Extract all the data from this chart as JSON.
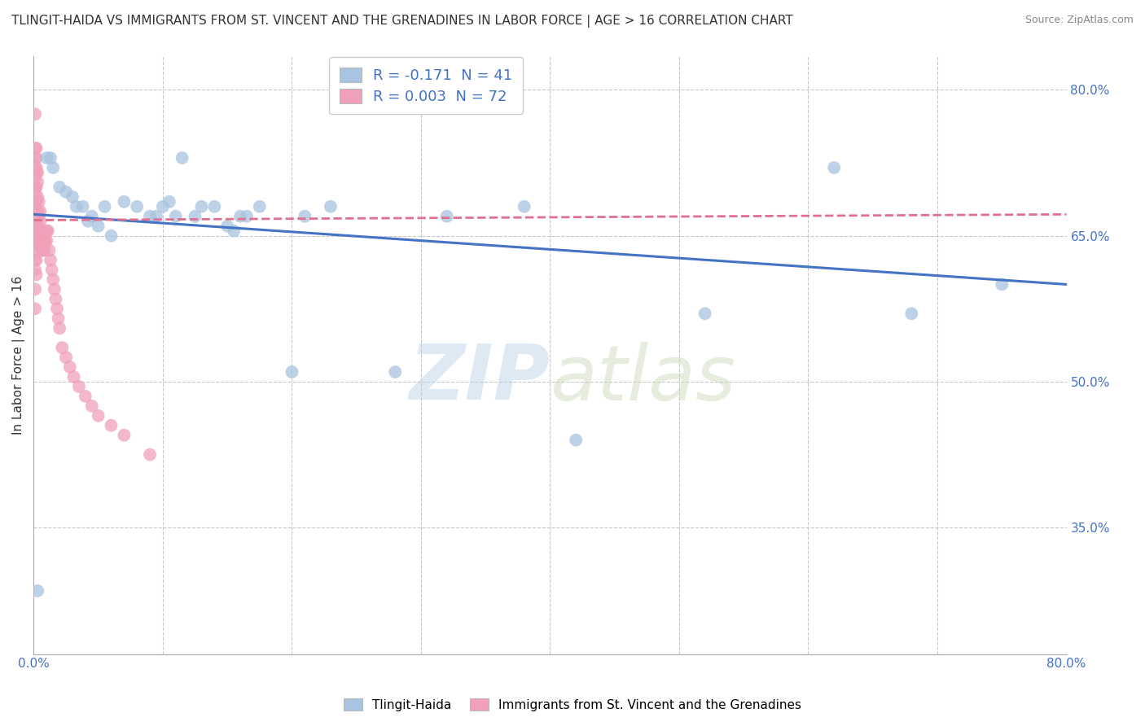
{
  "title": "TLINGIT-HAIDA VS IMMIGRANTS FROM ST. VINCENT AND THE GRENADINES IN LABOR FORCE | AGE > 16 CORRELATION CHART",
  "source": "Source: ZipAtlas.com",
  "ylabel": "In Labor Force | Age > 16",
  "xlim": [
    0.0,
    0.8
  ],
  "ylim": [
    0.22,
    0.835
  ],
  "blue_color": "#a8c4e0",
  "pink_color": "#f0a0b8",
  "blue_line_color": "#4472c4",
  "pink_line_color": "#e07090",
  "grid_color": "#c8c8c8",
  "watermark_zip": "ZIP",
  "watermark_atlas": "atlas",
  "legend_R1": "R = -0.171",
  "legend_N1": "N = 41",
  "legend_R2": "R = 0.003",
  "legend_N2": "N = 72",
  "legend_label1": "Tlingit-Haida",
  "legend_label2": "Immigrants from St. Vincent and the Grenadines",
  "blue_x": [
    0.003,
    0.01,
    0.013,
    0.015,
    0.02,
    0.025,
    0.03,
    0.033,
    0.038,
    0.042,
    0.045,
    0.05,
    0.055,
    0.06,
    0.07,
    0.08,
    0.09,
    0.095,
    0.1,
    0.105,
    0.11,
    0.115,
    0.125,
    0.13,
    0.14,
    0.15,
    0.155,
    0.16,
    0.165,
    0.175,
    0.2,
    0.21,
    0.23,
    0.28,
    0.32,
    0.38,
    0.42,
    0.52,
    0.62,
    0.68,
    0.75
  ],
  "blue_y": [
    0.285,
    0.73,
    0.73,
    0.72,
    0.7,
    0.695,
    0.69,
    0.68,
    0.68,
    0.665,
    0.67,
    0.66,
    0.68,
    0.65,
    0.685,
    0.68,
    0.67,
    0.67,
    0.68,
    0.685,
    0.67,
    0.73,
    0.67,
    0.68,
    0.68,
    0.66,
    0.655,
    0.67,
    0.67,
    0.68,
    0.51,
    0.67,
    0.68,
    0.51,
    0.67,
    0.68,
    0.44,
    0.57,
    0.72,
    0.57,
    0.6
  ],
  "pink_x": [
    0.001,
    0.001,
    0.001,
    0.001,
    0.001,
    0.001,
    0.001,
    0.001,
    0.001,
    0.001,
    0.001,
    0.001,
    0.001,
    0.001,
    0.001,
    0.001,
    0.001,
    0.002,
    0.002,
    0.002,
    0.002,
    0.002,
    0.002,
    0.002,
    0.002,
    0.002,
    0.002,
    0.002,
    0.002,
    0.003,
    0.003,
    0.003,
    0.003,
    0.003,
    0.003,
    0.004,
    0.004,
    0.004,
    0.005,
    0.005,
    0.005,
    0.006,
    0.006,
    0.007,
    0.007,
    0.008,
    0.008,
    0.009,
    0.009,
    0.01,
    0.01,
    0.011,
    0.012,
    0.013,
    0.014,
    0.015,
    0.016,
    0.017,
    0.018,
    0.019,
    0.02,
    0.022,
    0.025,
    0.028,
    0.031,
    0.035,
    0.04,
    0.045,
    0.05,
    0.06,
    0.07,
    0.09
  ],
  "pink_y": [
    0.775,
    0.74,
    0.73,
    0.72,
    0.71,
    0.7,
    0.695,
    0.685,
    0.675,
    0.665,
    0.655,
    0.645,
    0.635,
    0.625,
    0.615,
    0.595,
    0.575,
    0.74,
    0.73,
    0.72,
    0.715,
    0.7,
    0.685,
    0.675,
    0.66,
    0.65,
    0.64,
    0.625,
    0.61,
    0.715,
    0.705,
    0.69,
    0.675,
    0.66,
    0.645,
    0.685,
    0.67,
    0.655,
    0.675,
    0.665,
    0.645,
    0.645,
    0.635,
    0.645,
    0.635,
    0.645,
    0.635,
    0.655,
    0.645,
    0.655,
    0.645,
    0.655,
    0.635,
    0.625,
    0.615,
    0.605,
    0.595,
    0.585,
    0.575,
    0.565,
    0.555,
    0.535,
    0.525,
    0.515,
    0.505,
    0.495,
    0.485,
    0.475,
    0.465,
    0.455,
    0.445,
    0.425
  ],
  "blue_trend_x": [
    0.0,
    0.8
  ],
  "blue_trend_y": [
    0.672,
    0.6
  ],
  "pink_trend_x": [
    0.0,
    0.8
  ],
  "pink_trend_y": [
    0.666,
    0.672
  ],
  "background_color": "#ffffff",
  "title_fontsize": 11,
  "axis_label_fontsize": 11,
  "tick_fontsize": 11,
  "legend_fontsize": 13
}
